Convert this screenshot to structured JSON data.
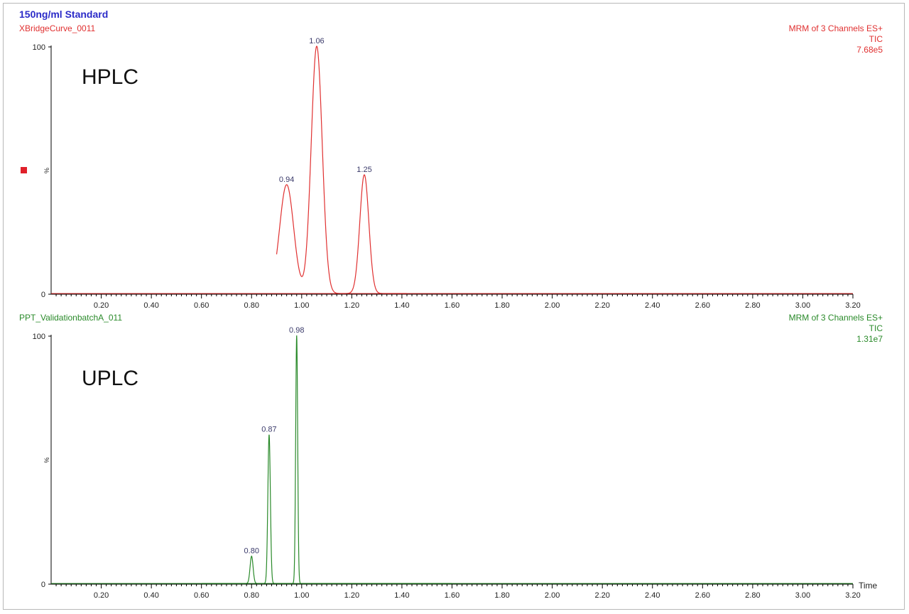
{
  "header": {
    "title": "150ng/ml Standard",
    "title_color": "#2b2bc8"
  },
  "panels": [
    {
      "sample": "XBridgeCurve_0011",
      "label": "HPLC",
      "channel": "MRM of 3 Channels ES+",
      "trace": "TIC",
      "scale": "7.68e5",
      "color": "#e03030",
      "peak_label_color": "#3a3a6a"
    },
    {
      "sample": "PPT_ValidationbatchA_011",
      "label": "UPLC",
      "channel": "MRM of 3 Channels ES+",
      "trace": "TIC",
      "scale": "1.31e7",
      "color": "#2a8a2a",
      "peak_label_color": "#3a3a6a"
    }
  ],
  "chart_data": [
    {
      "type": "line",
      "x_range": [
        0,
        3.2
      ],
      "y_range": [
        0,
        100
      ],
      "y_ticks": [
        "0",
        "100"
      ],
      "y_unit": "%",
      "x_ticks": [
        "0.20",
        "0.40",
        "0.60",
        "0.80",
        "1.00",
        "1.20",
        "1.40",
        "1.60",
        "1.80",
        "2.00",
        "2.20",
        "2.40",
        "2.60",
        "2.80",
        "3.00",
        "3.20"
      ],
      "peaks": [
        {
          "x": 0.94,
          "y": 44,
          "w": 0.028,
          "label": "0.94"
        },
        {
          "x": 1.06,
          "y": 100,
          "w": 0.022,
          "label": "1.06"
        },
        {
          "x": 1.25,
          "y": 48,
          "w": 0.018,
          "label": "1.25"
        }
      ],
      "trace_start": 0.9,
      "trace_end": 1.42,
      "marker": "square"
    },
    {
      "type": "line",
      "x_range": [
        0,
        3.2
      ],
      "y_range": [
        0,
        100
      ],
      "y_ticks": [
        "0",
        "100"
      ],
      "y_unit": "%",
      "x_label": "Time",
      "x_ticks": [
        "0.20",
        "0.40",
        "0.60",
        "0.80",
        "1.00",
        "1.20",
        "1.40",
        "1.60",
        "1.80",
        "2.00",
        "2.20",
        "2.40",
        "2.60",
        "2.80",
        "3.00",
        "3.20"
      ],
      "peaks": [
        {
          "x": 0.8,
          "y": 11,
          "w": 0.006,
          "label": "0.80"
        },
        {
          "x": 0.87,
          "y": 60,
          "w": 0.005,
          "label": "0.87"
        },
        {
          "x": 0.98,
          "y": 100,
          "w": 0.004,
          "label": "0.98"
        }
      ],
      "trace_start": 0.6,
      "trace_end": 1.6
    }
  ]
}
